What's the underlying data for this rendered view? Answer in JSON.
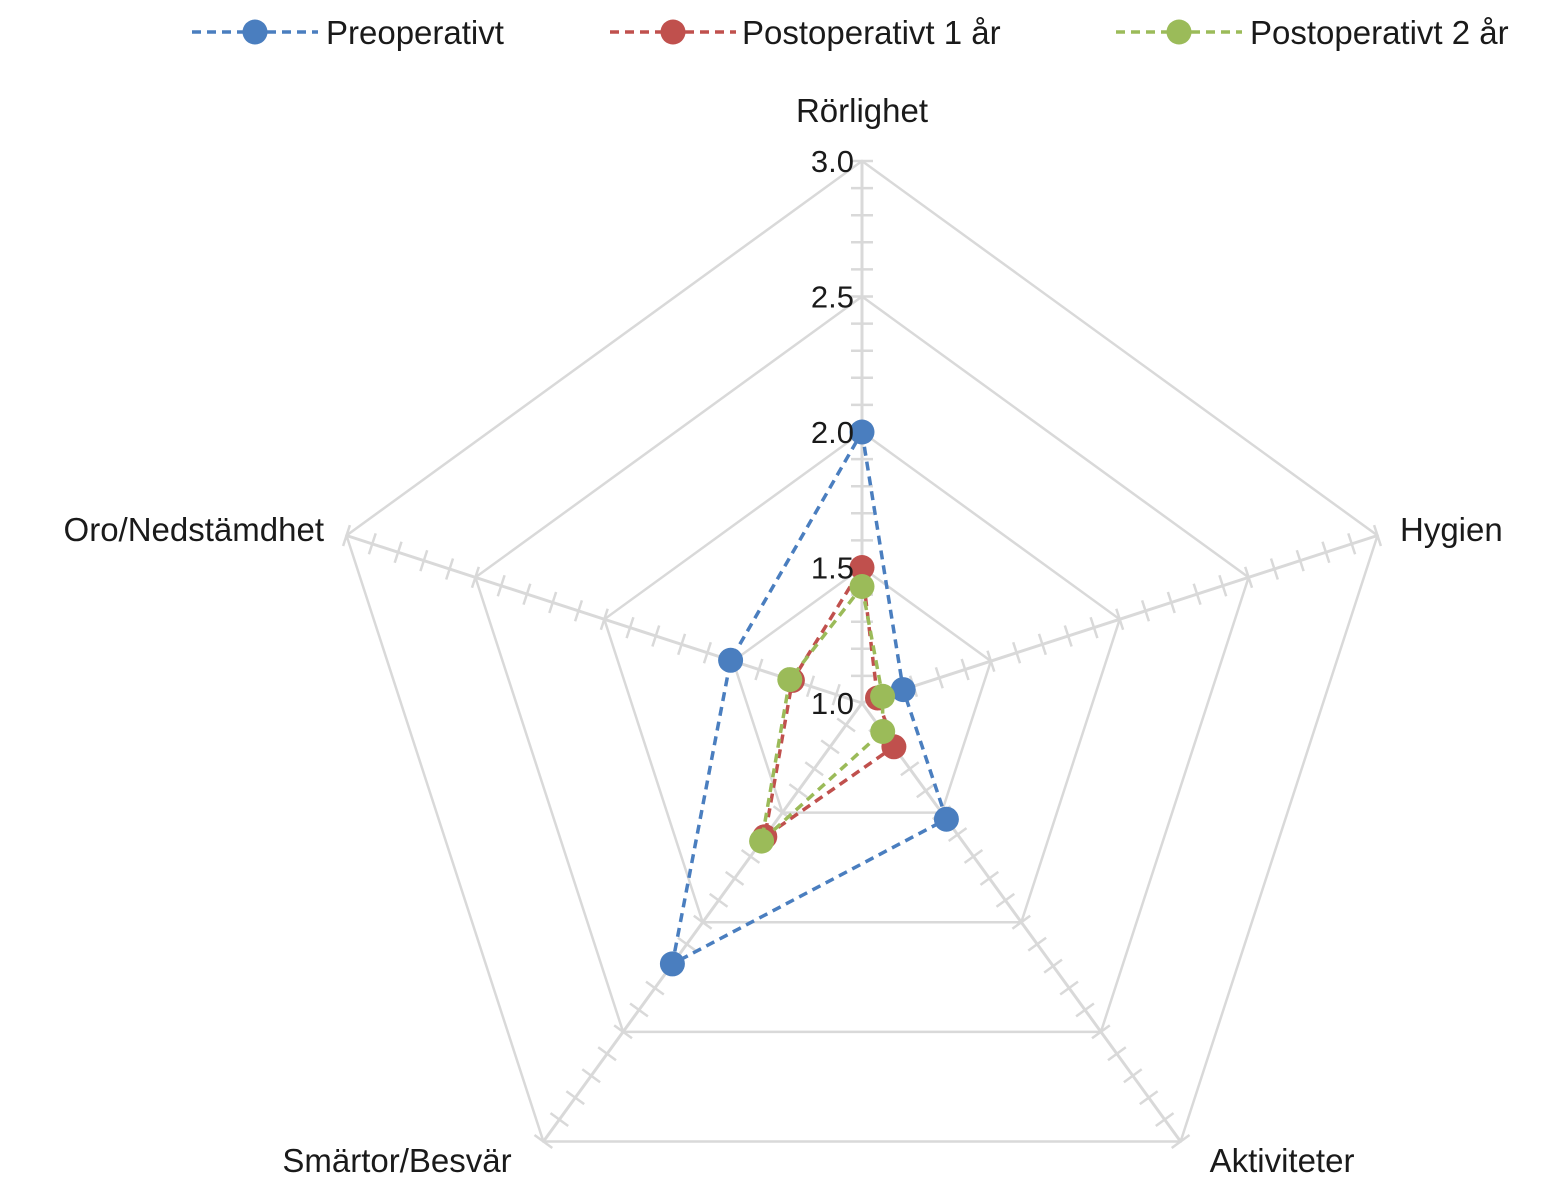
{
  "chart_data": {
    "type": "radar",
    "title": "",
    "axes": [
      "Rörlighet",
      "Hygien",
      "Aktiviteter",
      "Smärtor/Besvär",
      "Oro/Nedstämdhet"
    ],
    "range": [
      1.0,
      3.0
    ],
    "ticks": [
      "1.0",
      "1.5",
      "2.0",
      "2.5",
      "3.0"
    ],
    "minor_tick_step": 0.1,
    "grid": true,
    "legend_position": "top",
    "line_style": "dashed",
    "series": [
      {
        "name": "Preoperativt",
        "color": "#4a7ebf",
        "values": [
          2.0,
          1.16,
          1.53,
          2.19,
          1.51
        ]
      },
      {
        "name": "Postoperativt 1 år",
        "color": "#c0504d",
        "values": [
          1.5,
          1.06,
          1.2,
          1.61,
          1.27
        ]
      },
      {
        "name": "Postoperativt 2 år",
        "color": "#9bbb59",
        "values": [
          1.43,
          1.08,
          1.13,
          1.63,
          1.28
        ]
      }
    ],
    "grid_color": "#d9d9d9"
  }
}
